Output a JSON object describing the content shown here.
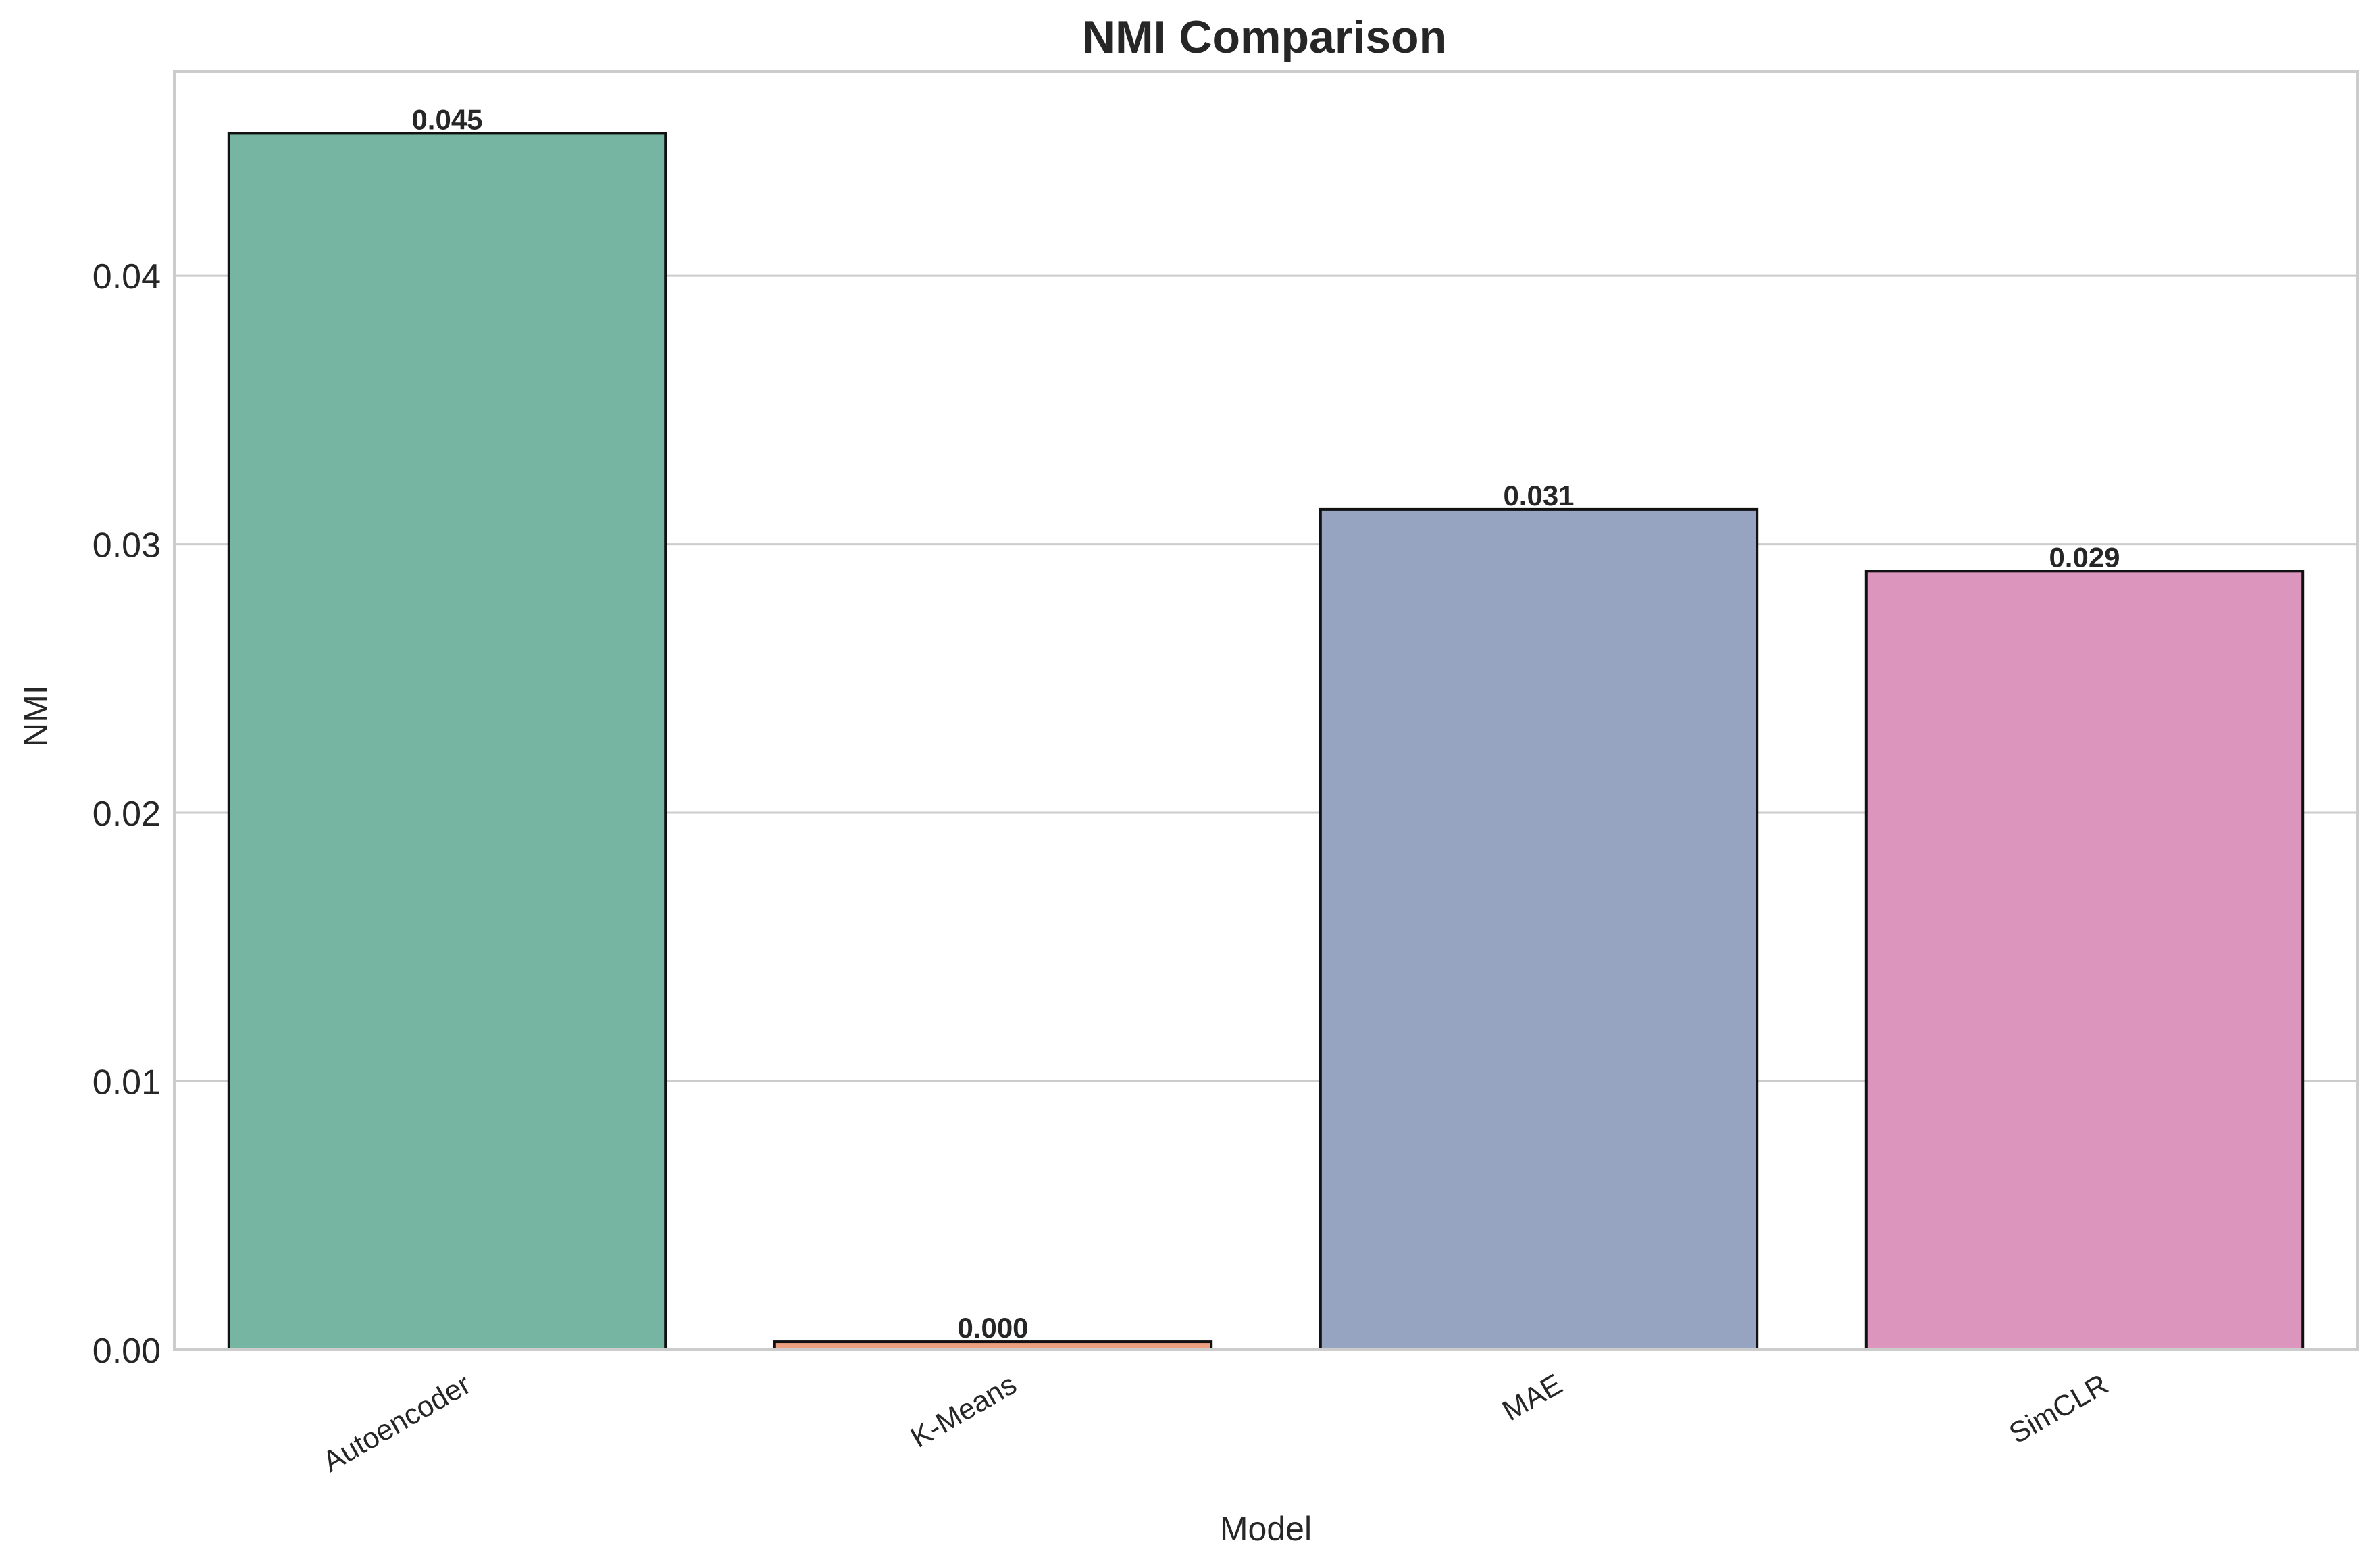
{
  "chart_data": {
    "type": "bar",
    "title": "NMI Comparison",
    "xlabel": "Model",
    "ylabel": "NMI",
    "categories": [
      "Autoencoder",
      "K-Means",
      "MAE",
      "SimCLR"
    ],
    "values": [
      0.0453,
      0.0003,
      0.0313,
      0.029
    ],
    "value_labels": [
      "0.045",
      "0.000",
      "0.031",
      "0.029"
    ],
    "colors": [
      "#75b5a1",
      "#ec9f81",
      "#96a4c2",
      "#dc96be"
    ],
    "bar_edge_color": "#111111",
    "ylim": [
      0,
      0.0476
    ],
    "yticks": [
      0.0,
      0.01,
      0.02,
      0.03,
      0.04
    ],
    "ytick_labels": [
      "0.00",
      "0.01",
      "0.02",
      "0.03",
      "0.04"
    ],
    "grid": "horizontal",
    "grid_color": "#cccccc",
    "frame_color": "#cccccc",
    "legend": "none"
  }
}
